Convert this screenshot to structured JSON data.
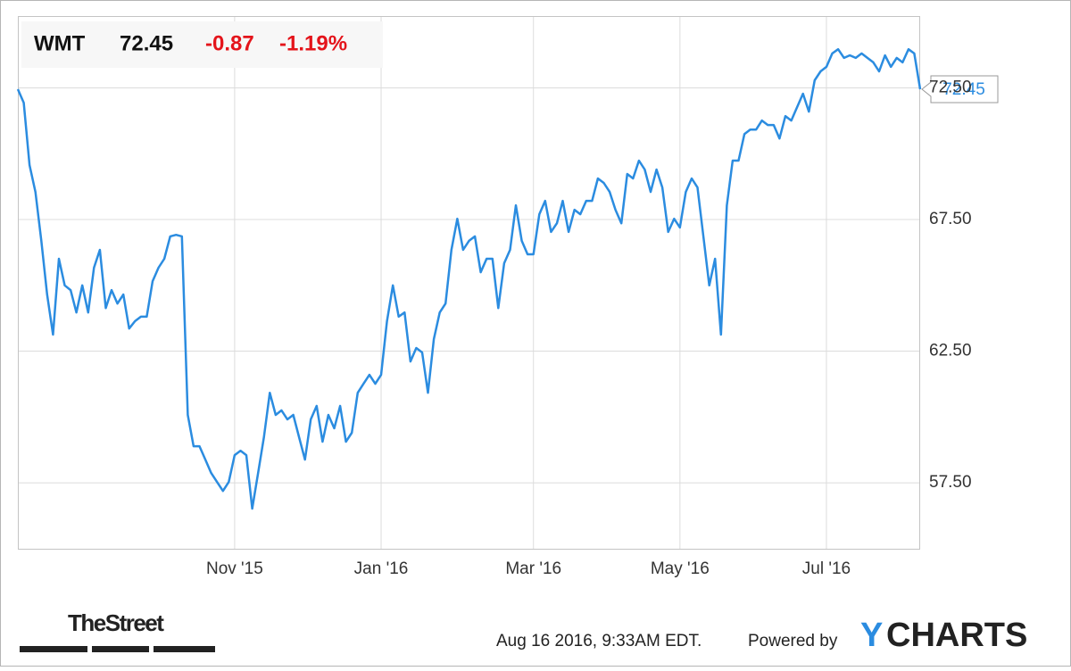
{
  "chart_data": {
    "type": "line",
    "header": {
      "symbol": "WMT",
      "price": "72.45",
      "change": "-0.87",
      "change_pct": "-1.19%"
    },
    "color": "#2b8ce0",
    "grid": true,
    "values": [
      72.45,
      71.94,
      69.57,
      68.55,
      66.69,
      64.65,
      63.13,
      66.01,
      65.0,
      64.82,
      63.97,
      65.0,
      63.97,
      65.67,
      66.35,
      64.14,
      64.82,
      64.31,
      64.65,
      63.36,
      63.64,
      63.81,
      63.81,
      65.16,
      65.67,
      66.01,
      66.86,
      66.92,
      66.86,
      60.08,
      58.89,
      58.89,
      58.38,
      57.87,
      57.53,
      57.19,
      57.53,
      58.55,
      58.72,
      58.55,
      56.52,
      57.87,
      59.23,
      60.92,
      60.08,
      60.25,
      59.91,
      60.08,
      59.23,
      58.38,
      59.91,
      60.42,
      59.06,
      60.08,
      59.57,
      60.42,
      59.06,
      59.4,
      60.92,
      61.26,
      61.6,
      61.26,
      61.6,
      63.64,
      65.0,
      63.81,
      63.97,
      62.11,
      62.62,
      62.45,
      60.92,
      62.96,
      63.97,
      64.31,
      66.35,
      67.53,
      66.35,
      66.69,
      66.86,
      65.5,
      66.01,
      66.01,
      64.14,
      65.84,
      66.35,
      68.04,
      66.69,
      66.18,
      66.18,
      67.7,
      68.21,
      67.03,
      67.36,
      68.21,
      67.03,
      67.87,
      67.7,
      68.21,
      68.21,
      69.06,
      68.89,
      68.55,
      67.87,
      67.36,
      69.23,
      69.06,
      69.74,
      69.4,
      68.55,
      69.4,
      68.72,
      67.03,
      67.53,
      67.2,
      68.55,
      69.06,
      68.72,
      66.86,
      65.0,
      66.01,
      63.13,
      68.04,
      69.74,
      69.74,
      70.75,
      70.92,
      70.92,
      71.26,
      71.09,
      71.09,
      70.58,
      71.43,
      71.26,
      71.77,
      72.28,
      71.6,
      72.79,
      73.13,
      73.3,
      73.81,
      73.97,
      73.64,
      73.74,
      73.64,
      73.81,
      73.64,
      73.47,
      73.13,
      73.74,
      73.3,
      73.64,
      73.47,
      73.97,
      73.81,
      72.45
    ],
    "xlim": [
      0,
      154
    ],
    "xticks": [
      {
        "value": 37,
        "label": "Nov '15"
      },
      {
        "value": 62,
        "label": "Jan '16"
      },
      {
        "value": 88,
        "label": "Mar '16"
      },
      {
        "value": 113,
        "label": "May '16"
      },
      {
        "value": 138,
        "label": "Jul '16"
      }
    ],
    "ylim": [
      54.96,
      75.23
    ],
    "yticks": [
      {
        "value": 57.5,
        "label": "57.50"
      },
      {
        "value": 62.5,
        "label": "62.50"
      },
      {
        "value": 67.5,
        "label": "67.50"
      },
      {
        "value": 72.5,
        "label": "72.50"
      }
    ],
    "footer": {
      "source": "TheStreet",
      "timestamp": "Aug 16 2016, 9:33AM EDT.",
      "powered": "Powered by",
      "logo_first": "Y",
      "logo_rest": "CHARTS"
    }
  }
}
